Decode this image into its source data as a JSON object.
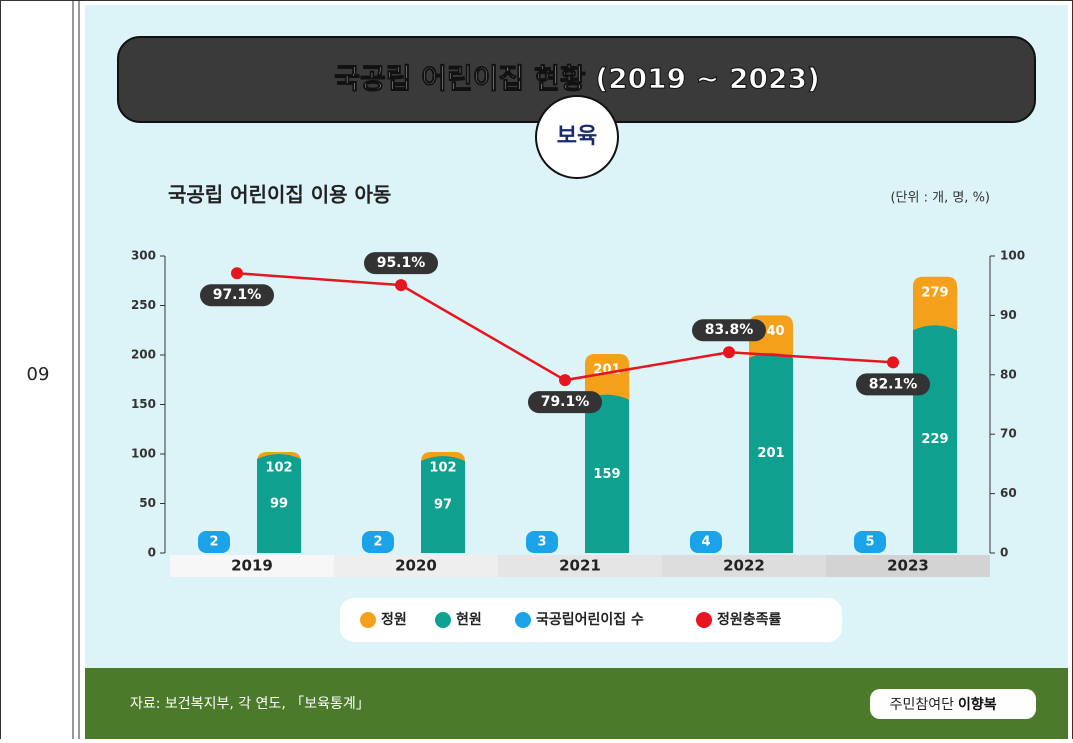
{
  "row_number": "09",
  "chart_data": {
    "type": "bar",
    "title": "국공립 어린이집 현황 (2019 ~ 2023)",
    "badge": "보육",
    "subtitle": "국공립 어린이집 이용 아동",
    "unit": "(단위 : 개, 명, %)",
    "categories": [
      "2019",
      "2020",
      "2021",
      "2022",
      "2023"
    ],
    "series": [
      {
        "name": "정원",
        "color": "#f5a01a",
        "values": [
          102,
          102,
          201,
          240,
          279
        ]
      },
      {
        "name": "현원",
        "color": "#0fa090",
        "values": [
          99,
          97,
          159,
          201,
          229
        ]
      },
      {
        "name": "국공립어린이집 수",
        "color": "#1aa3e8",
        "values": [
          2,
          2,
          3,
          4,
          5
        ]
      },
      {
        "name": "정원충족률",
        "color": "#e8141e",
        "axis": "y2",
        "values": [
          97.1,
          95.1,
          79.1,
          83.8,
          82.1
        ],
        "value_labels": [
          "97.1%",
          "95.1%",
          "79.1%",
          "83.8%",
          "82.1%"
        ]
      }
    ],
    "ylim": [
      0,
      300
    ],
    "yticks": [
      0,
      50,
      100,
      150,
      200,
      250,
      300
    ],
    "y2lim": [
      50,
      100
    ],
    "y2ticks": [
      {
        "value": 50,
        "label": "0"
      },
      60,
      70,
      80,
      90,
      100
    ],
    "source": "자료: 보건복지부, 각 연도, 「보육통계」",
    "credit": "주민참여단",
    "credit_name": "이향복"
  }
}
